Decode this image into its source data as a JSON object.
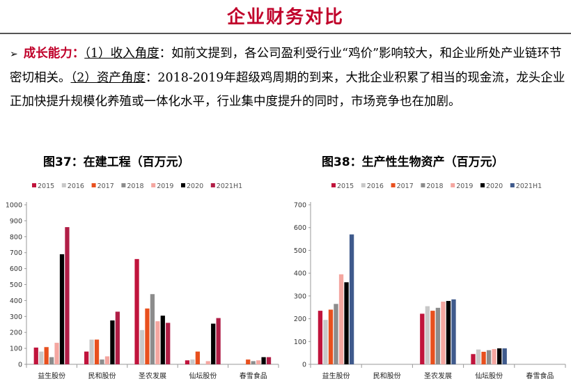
{
  "header": {
    "title": "企业财务对比"
  },
  "text": {
    "lead": "成长能力：",
    "p1_label": "（1）收入角度",
    "p1_body": "：如前文提到，各公司盈利受行业“鸡价”影响较大，和企业所处产业链环节密切相关。",
    "p2_label": "（2）资产角度",
    "p2_body": "：2018-2019年超级鸡周期的到来，大批企业积累了相当的现金流，龙头企业正加快提升规模化养殖或一体化水平，行业集中度提升的同时，市场竞争也在加剧。"
  },
  "figures": [
    {
      "title": "图37：在建工程（百万元）"
    },
    {
      "title": "图38：生产性生物资产（百万元）"
    }
  ],
  "colors": {
    "2015": "#c0143c",
    "2016": "#c8c8c8",
    "2017": "#e8501e",
    "2018": "#8c8c8c",
    "2019": "#f4a6a0",
    "2020": "#000000",
    "2021H1_a": "#b01e46",
    "2021H1_b": "#3f5a8c"
  },
  "chart_data": [
    {
      "type": "bar",
      "title": "图37：在建工程（百万元）",
      "categories": [
        "益生股份",
        "民和股份",
        "圣农发展",
        "仙坛股份",
        "春雪食品"
      ],
      "ylim": [
        0,
        1000
      ],
      "yticks": [
        0,
        100,
        200,
        300,
        400,
        500,
        600,
        700,
        800,
        900,
        1000
      ],
      "legend": "top",
      "series": [
        {
          "name": "2015",
          "values": [
            105,
            80,
            660,
            25,
            0
          ]
        },
        {
          "name": "2016",
          "values": [
            80,
            155,
            215,
            30,
            0
          ]
        },
        {
          "name": "2017",
          "values": [
            108,
            155,
            350,
            80,
            30
          ]
        },
        {
          "name": "2018",
          "values": [
            45,
            30,
            440,
            0,
            20
          ]
        },
        {
          "name": "2019",
          "values": [
            135,
            50,
            270,
            20,
            25
          ]
        },
        {
          "name": "2020",
          "values": [
            690,
            275,
            305,
            255,
            45
          ]
        },
        {
          "name": "2021H1",
          "values": [
            860,
            330,
            260,
            290,
            45
          ]
        }
      ]
    },
    {
      "type": "bar",
      "title": "图38：生产性生物资产（百万元）",
      "categories": [
        "益生股份",
        "民和股份",
        "圣农发展",
        "仙坛股份",
        "春雪食品"
      ],
      "ylim": [
        0,
        700
      ],
      "yticks": [
        0,
        100,
        200,
        300,
        400,
        500,
        600,
        700
      ],
      "legend": "top",
      "series": [
        {
          "name": "2015",
          "values": [
            235,
            0,
            222,
            45,
            0
          ]
        },
        {
          "name": "2016",
          "values": [
            195,
            0,
            255,
            65,
            0
          ]
        },
        {
          "name": "2017",
          "values": [
            240,
            0,
            235,
            55,
            0
          ]
        },
        {
          "name": "2018",
          "values": [
            265,
            0,
            248,
            62,
            0
          ]
        },
        {
          "name": "2019",
          "values": [
            395,
            0,
            275,
            67,
            0
          ]
        },
        {
          "name": "2020",
          "values": [
            360,
            0,
            278,
            70,
            0
          ]
        },
        {
          "name": "2021H1",
          "values": [
            570,
            0,
            285,
            70,
            0
          ]
        }
      ]
    }
  ]
}
